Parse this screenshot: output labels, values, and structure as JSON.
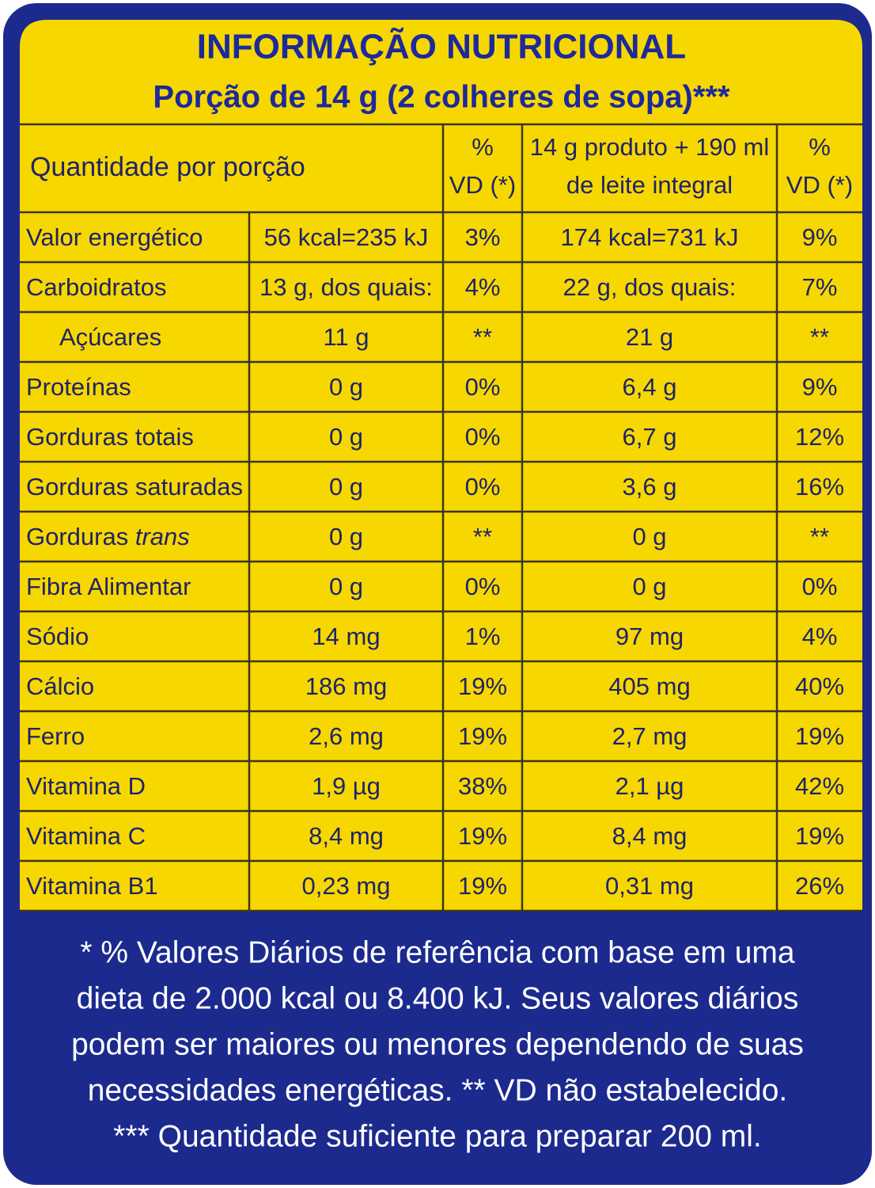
{
  "header": {
    "title": "INFORMAÇÃO NUTRICIONAL",
    "subtitle": "Porção de 14 g (2 colheres de sopa)***"
  },
  "table": {
    "columns": [
      "Quantidade por porção",
      [
        "%",
        "VD (*)"
      ],
      [
        "14 g produto + 190 ml",
        "de leite integral"
      ],
      [
        "%",
        "VD (*)"
      ]
    ],
    "rows": [
      [
        "Valor energético",
        "56 kcal=235 kJ",
        "3%",
        "174 kcal=731 kJ",
        "9%"
      ],
      [
        "Carboidratos",
        "13 g, dos quais:",
        "4%",
        "22 g, dos quais:",
        "7%"
      ],
      [
        "Açúcares",
        "11 g",
        "**",
        "21 g",
        "**"
      ],
      [
        "Proteínas",
        "0 g",
        "0%",
        "6,4 g",
        "9%"
      ],
      [
        "Gorduras totais",
        "0 g",
        "0%",
        "6,7 g",
        "12%"
      ],
      [
        "Gorduras saturadas",
        "0 g",
        "0%",
        "3,6 g",
        "16%"
      ],
      [
        [
          "Gorduras",
          "trans"
        ],
        "0 g",
        "**",
        "0 g",
        "**"
      ],
      [
        "Fibra Alimentar",
        "0 g",
        "0%",
        "0 g",
        "0%"
      ],
      [
        "Sódio",
        "14 mg",
        "1%",
        "97 mg",
        "4%"
      ],
      [
        "Cálcio",
        "186 mg",
        "19%",
        "405 mg",
        "40%"
      ],
      [
        "Ferro",
        "2,6 mg",
        "19%",
        "2,7 mg",
        "19%"
      ],
      [
        "Vitamina D",
        "1,9 µg",
        "38%",
        "2,1 µg",
        "42%"
      ],
      [
        "Vitamina C",
        "8,4 mg",
        "19%",
        "8,4 mg",
        "19%"
      ],
      [
        "Vitamina B1",
        "0,23 mg",
        "19%",
        "0,31 mg",
        "26%"
      ]
    ]
  },
  "footer": {
    "lines": [
      "* % Valores Diários de referência com base em uma",
      "dieta de 2.000 kcal ou 8.400 kJ. Seus valores diários",
      "podem ser maiores ou menores dependendo de suas",
      "necessidades energéticas. ** VD não estabelecido.",
      "*** Quantidade suficiente para preparar 200 ml."
    ]
  }
}
